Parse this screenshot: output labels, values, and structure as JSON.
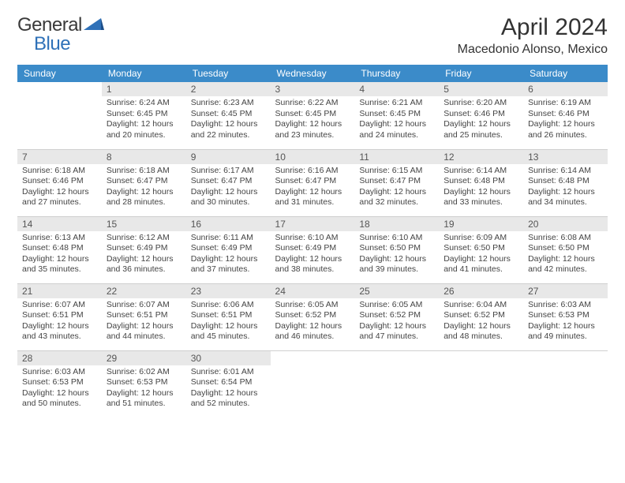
{
  "logo": {
    "text_a": "General",
    "text_b": "Blue",
    "color_a": "#3a3a3a",
    "color_b": "#2f71b8",
    "icon_color": "#2f71b8"
  },
  "header": {
    "title": "April 2024",
    "location": "Macedonio Alonso, Mexico"
  },
  "calendar": {
    "header_bg": "#3b8bc9",
    "header_fg": "#ffffff",
    "daynum_bg": "#e8e8e8",
    "border_color": "#cfcfcf",
    "weekdays": [
      "Sunday",
      "Monday",
      "Tuesday",
      "Wednesday",
      "Thursday",
      "Friday",
      "Saturday"
    ],
    "weeks": [
      [
        null,
        {
          "n": "1",
          "sr": "Sunrise: 6:24 AM",
          "ss": "Sunset: 6:45 PM",
          "d1": "Daylight: 12 hours",
          "d2": "and 20 minutes."
        },
        {
          "n": "2",
          "sr": "Sunrise: 6:23 AM",
          "ss": "Sunset: 6:45 PM",
          "d1": "Daylight: 12 hours",
          "d2": "and 22 minutes."
        },
        {
          "n": "3",
          "sr": "Sunrise: 6:22 AM",
          "ss": "Sunset: 6:45 PM",
          "d1": "Daylight: 12 hours",
          "d2": "and 23 minutes."
        },
        {
          "n": "4",
          "sr": "Sunrise: 6:21 AM",
          "ss": "Sunset: 6:45 PM",
          "d1": "Daylight: 12 hours",
          "d2": "and 24 minutes."
        },
        {
          "n": "5",
          "sr": "Sunrise: 6:20 AM",
          "ss": "Sunset: 6:46 PM",
          "d1": "Daylight: 12 hours",
          "d2": "and 25 minutes."
        },
        {
          "n": "6",
          "sr": "Sunrise: 6:19 AM",
          "ss": "Sunset: 6:46 PM",
          "d1": "Daylight: 12 hours",
          "d2": "and 26 minutes."
        }
      ],
      [
        {
          "n": "7",
          "sr": "Sunrise: 6:18 AM",
          "ss": "Sunset: 6:46 PM",
          "d1": "Daylight: 12 hours",
          "d2": "and 27 minutes."
        },
        {
          "n": "8",
          "sr": "Sunrise: 6:18 AM",
          "ss": "Sunset: 6:47 PM",
          "d1": "Daylight: 12 hours",
          "d2": "and 28 minutes."
        },
        {
          "n": "9",
          "sr": "Sunrise: 6:17 AM",
          "ss": "Sunset: 6:47 PM",
          "d1": "Daylight: 12 hours",
          "d2": "and 30 minutes."
        },
        {
          "n": "10",
          "sr": "Sunrise: 6:16 AM",
          "ss": "Sunset: 6:47 PM",
          "d1": "Daylight: 12 hours",
          "d2": "and 31 minutes."
        },
        {
          "n": "11",
          "sr": "Sunrise: 6:15 AM",
          "ss": "Sunset: 6:47 PM",
          "d1": "Daylight: 12 hours",
          "d2": "and 32 minutes."
        },
        {
          "n": "12",
          "sr": "Sunrise: 6:14 AM",
          "ss": "Sunset: 6:48 PM",
          "d1": "Daylight: 12 hours",
          "d2": "and 33 minutes."
        },
        {
          "n": "13",
          "sr": "Sunrise: 6:14 AM",
          "ss": "Sunset: 6:48 PM",
          "d1": "Daylight: 12 hours",
          "d2": "and 34 minutes."
        }
      ],
      [
        {
          "n": "14",
          "sr": "Sunrise: 6:13 AM",
          "ss": "Sunset: 6:48 PM",
          "d1": "Daylight: 12 hours",
          "d2": "and 35 minutes."
        },
        {
          "n": "15",
          "sr": "Sunrise: 6:12 AM",
          "ss": "Sunset: 6:49 PM",
          "d1": "Daylight: 12 hours",
          "d2": "and 36 minutes."
        },
        {
          "n": "16",
          "sr": "Sunrise: 6:11 AM",
          "ss": "Sunset: 6:49 PM",
          "d1": "Daylight: 12 hours",
          "d2": "and 37 minutes."
        },
        {
          "n": "17",
          "sr": "Sunrise: 6:10 AM",
          "ss": "Sunset: 6:49 PM",
          "d1": "Daylight: 12 hours",
          "d2": "and 38 minutes."
        },
        {
          "n": "18",
          "sr": "Sunrise: 6:10 AM",
          "ss": "Sunset: 6:50 PM",
          "d1": "Daylight: 12 hours",
          "d2": "and 39 minutes."
        },
        {
          "n": "19",
          "sr": "Sunrise: 6:09 AM",
          "ss": "Sunset: 6:50 PM",
          "d1": "Daylight: 12 hours",
          "d2": "and 41 minutes."
        },
        {
          "n": "20",
          "sr": "Sunrise: 6:08 AM",
          "ss": "Sunset: 6:50 PM",
          "d1": "Daylight: 12 hours",
          "d2": "and 42 minutes."
        }
      ],
      [
        {
          "n": "21",
          "sr": "Sunrise: 6:07 AM",
          "ss": "Sunset: 6:51 PM",
          "d1": "Daylight: 12 hours",
          "d2": "and 43 minutes."
        },
        {
          "n": "22",
          "sr": "Sunrise: 6:07 AM",
          "ss": "Sunset: 6:51 PM",
          "d1": "Daylight: 12 hours",
          "d2": "and 44 minutes."
        },
        {
          "n": "23",
          "sr": "Sunrise: 6:06 AM",
          "ss": "Sunset: 6:51 PM",
          "d1": "Daylight: 12 hours",
          "d2": "and 45 minutes."
        },
        {
          "n": "24",
          "sr": "Sunrise: 6:05 AM",
          "ss": "Sunset: 6:52 PM",
          "d1": "Daylight: 12 hours",
          "d2": "and 46 minutes."
        },
        {
          "n": "25",
          "sr": "Sunrise: 6:05 AM",
          "ss": "Sunset: 6:52 PM",
          "d1": "Daylight: 12 hours",
          "d2": "and 47 minutes."
        },
        {
          "n": "26",
          "sr": "Sunrise: 6:04 AM",
          "ss": "Sunset: 6:52 PM",
          "d1": "Daylight: 12 hours",
          "d2": "and 48 minutes."
        },
        {
          "n": "27",
          "sr": "Sunrise: 6:03 AM",
          "ss": "Sunset: 6:53 PM",
          "d1": "Daylight: 12 hours",
          "d2": "and 49 minutes."
        }
      ],
      [
        {
          "n": "28",
          "sr": "Sunrise: 6:03 AM",
          "ss": "Sunset: 6:53 PM",
          "d1": "Daylight: 12 hours",
          "d2": "and 50 minutes."
        },
        {
          "n": "29",
          "sr": "Sunrise: 6:02 AM",
          "ss": "Sunset: 6:53 PM",
          "d1": "Daylight: 12 hours",
          "d2": "and 51 minutes."
        },
        {
          "n": "30",
          "sr": "Sunrise: 6:01 AM",
          "ss": "Sunset: 6:54 PM",
          "d1": "Daylight: 12 hours",
          "d2": "and 52 minutes."
        },
        null,
        null,
        null,
        null
      ]
    ]
  }
}
